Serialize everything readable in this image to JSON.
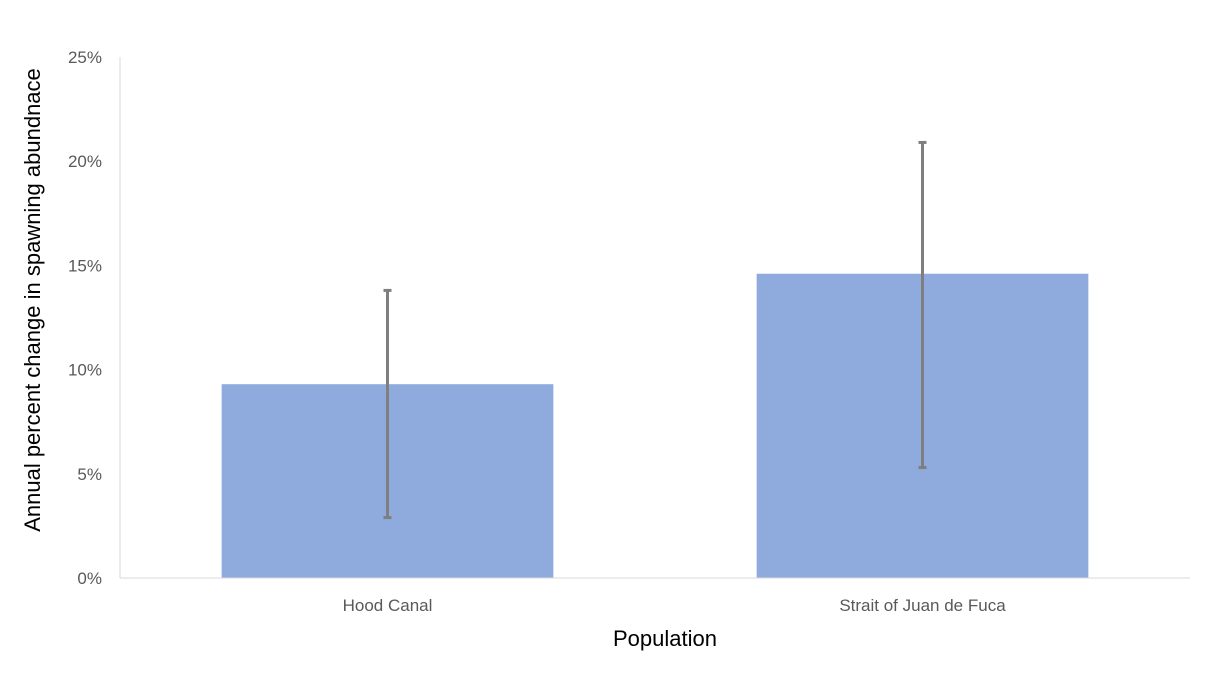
{
  "chart_data": {
    "type": "bar",
    "title": "",
    "xlabel": "Population",
    "ylabel": "Annual percent change in spawning abundnace",
    "categories": [
      "Hood Canal",
      "Strait of Juan de Fuca"
    ],
    "values": [
      9.3,
      14.6
    ],
    "error_bars": [
      {
        "low": 2.9,
        "high": 13.8
      },
      {
        "low": 5.3,
        "high": 20.9
      }
    ],
    "ylim": [
      0,
      25
    ],
    "yticks": [
      0,
      5,
      10,
      15,
      20,
      25
    ],
    "ytick_labels": [
      "0%",
      "5%",
      "10%",
      "15%",
      "20%",
      "25%"
    ],
    "grid": false,
    "legend": "none",
    "colors": {
      "bar": "#8faadc",
      "error_bar": "#7f7f7f",
      "axis": "#d9d9d9"
    }
  }
}
